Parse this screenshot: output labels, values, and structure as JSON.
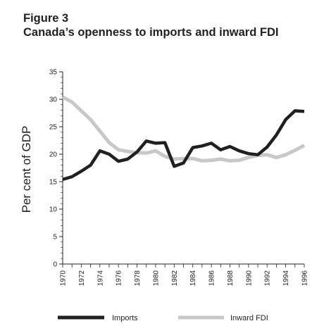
{
  "figure": {
    "label": "Figure 3",
    "title": "Canada’s openness to imports and inward FDI"
  },
  "chart_data": {
    "type": "line",
    "ylabel": "Per cent of GDP",
    "xlabel": "",
    "ylim": [
      0,
      35
    ],
    "y_ticks": [
      0,
      5,
      10,
      15,
      20,
      25,
      30,
      35
    ],
    "x_tick_labels": [
      "1970",
      "1972",
      "1974",
      "1976",
      "1978",
      "1980",
      "1982",
      "1984",
      "1986",
      "1988",
      "1990",
      "1992",
      "1994",
      "1996"
    ],
    "x": [
      1970,
      1971,
      1972,
      1973,
      1974,
      1975,
      1976,
      1977,
      1978,
      1979,
      1980,
      1981,
      1982,
      1983,
      1984,
      1985,
      1986,
      1987,
      1988,
      1989,
      1990,
      1991,
      1992,
      1993,
      1994,
      1995,
      1996
    ],
    "grid": false,
    "legend_position": "bottom",
    "series": [
      {
        "name": "Imports",
        "color": "#231f20",
        "values": [
          15.4,
          15.9,
          16.9,
          18.0,
          20.6,
          20.0,
          18.7,
          19.1,
          20.4,
          22.4,
          22.0,
          22.1,
          17.8,
          18.4,
          21.2,
          21.5,
          22.0,
          20.8,
          21.4,
          20.6,
          20.1,
          19.9,
          21.3,
          23.5,
          26.3,
          27.9,
          27.8
        ]
      },
      {
        "name": "Inward FDI",
        "color": "#c8c8c8",
        "values": [
          30.4,
          29.5,
          27.9,
          26.3,
          24.2,
          22.1,
          20.8,
          20.5,
          20.3,
          20.2,
          20.6,
          19.6,
          19.1,
          19.2,
          19.2,
          18.8,
          18.9,
          19.1,
          18.8,
          18.9,
          19.4,
          19.8,
          19.9,
          19.4,
          19.9,
          20.7,
          21.6
        ]
      }
    ]
  }
}
